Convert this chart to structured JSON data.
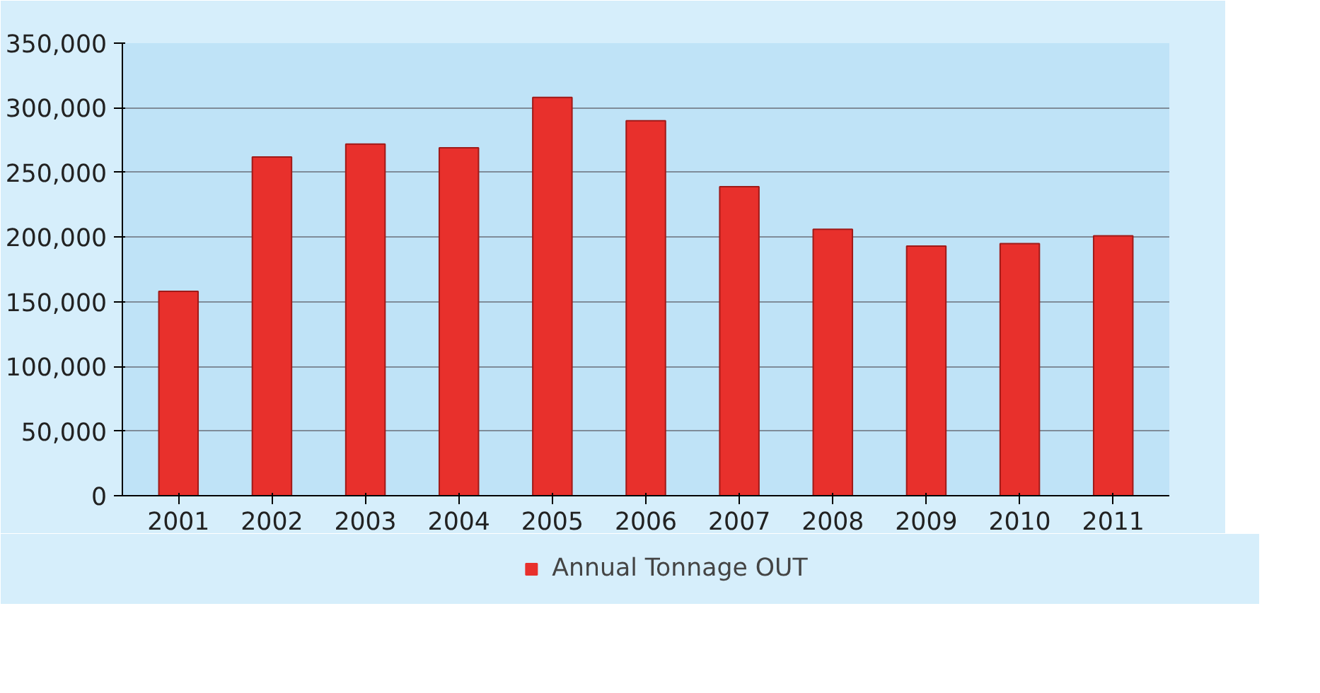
{
  "chart_data": {
    "type": "bar",
    "categories": [
      "2001",
      "2002",
      "2003",
      "2004",
      "2005",
      "2006",
      "2007",
      "2008",
      "2009",
      "2010",
      "2011"
    ],
    "series": [
      {
        "name": "Annual Tonnage OUT",
        "color": "#e8302c",
        "values": [
          158000,
          262000,
          272000,
          269000,
          308000,
          290000,
          239000,
          206000,
          193000,
          195000,
          201000
        ]
      }
    ],
    "ylim": [
      0,
      350000
    ],
    "yticks": [
      {
        "value": 0,
        "label": "0"
      },
      {
        "value": 50000,
        "label": "50,000"
      },
      {
        "value": 100000,
        "label": "100,000"
      },
      {
        "value": 150000,
        "label": "150,000"
      },
      {
        "value": 200000,
        "label": "200,000"
      },
      {
        "value": 250000,
        "label": "250,000"
      },
      {
        "value": 300000,
        "label": "300,000"
      },
      {
        "value": 350000,
        "label": "350,000"
      }
    ],
    "grid": "y",
    "legend": "bottom"
  }
}
